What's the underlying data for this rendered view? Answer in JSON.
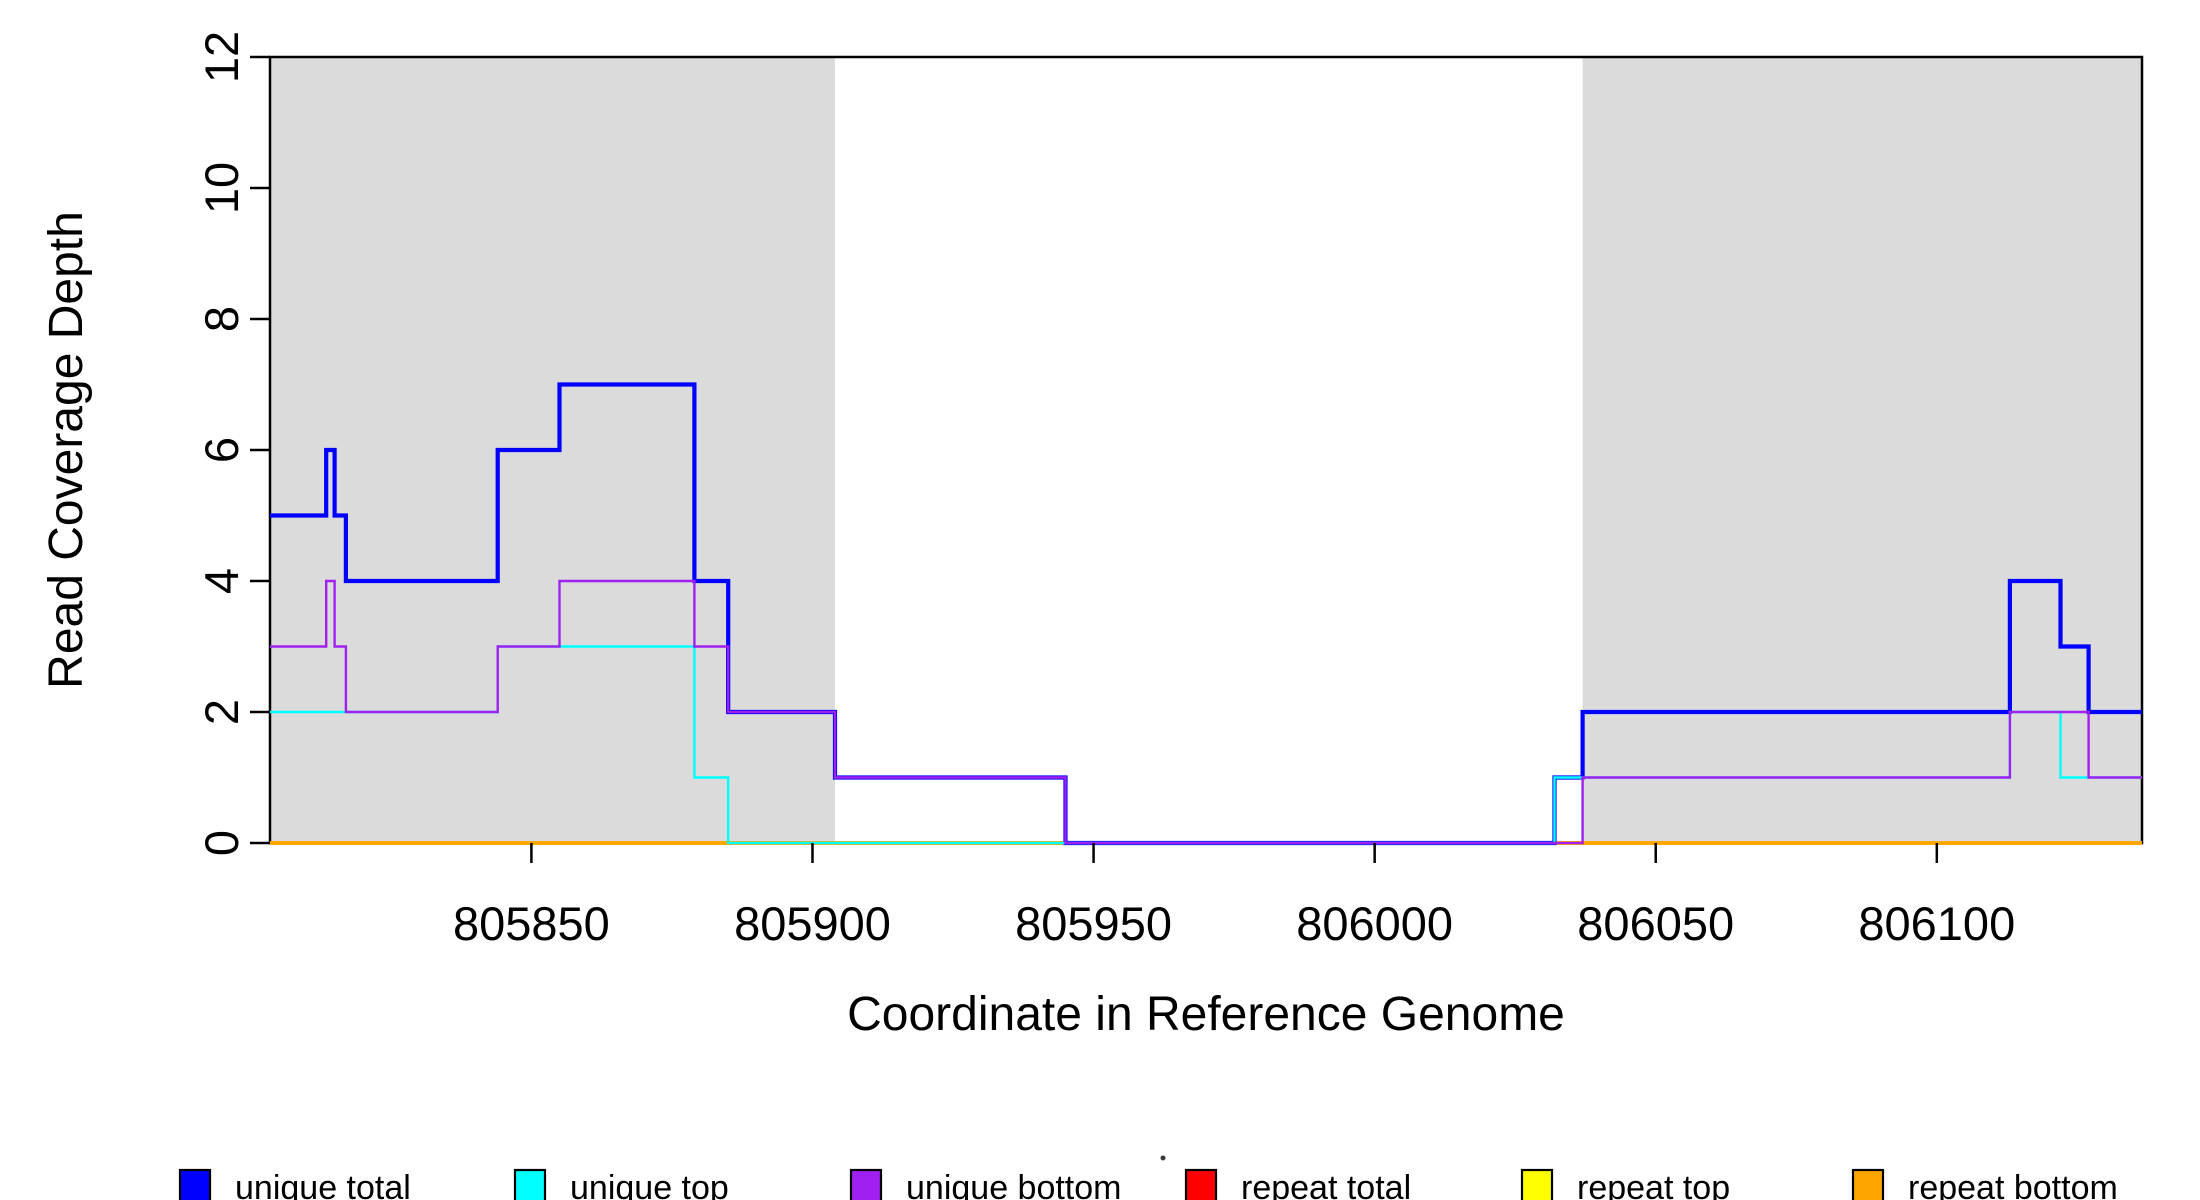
{
  "chart_data": {
    "type": "line",
    "subtype": "step",
    "title": "",
    "xlabel": "Coordinate in Reference Genome",
    "ylabel": "Read Coverage Depth",
    "xlim": [
      805803.5,
      806136.5
    ],
    "ylim": [
      0,
      12
    ],
    "x_end": 806136.5,
    "xticks": [
      805850,
      805900,
      805950,
      806000,
      806050,
      806100
    ],
    "yticks": [
      0,
      2,
      4,
      6,
      8,
      10,
      12
    ],
    "grid": false,
    "legend_position": "bottom",
    "axis_color": "#000000",
    "shaded_regions": [
      {
        "from": 805803.5,
        "to": 805904,
        "color": "#dbdbdb"
      },
      {
        "from": 806037,
        "to": 806136.5,
        "color": "#dbdbdb"
      }
    ],
    "series": [
      {
        "name": "repeat total",
        "color": "#ff0000",
        "width": 3.8,
        "steps": [
          [
            805803.5,
            0
          ]
        ]
      },
      {
        "name": "repeat top",
        "color": "#ffff00",
        "width": 3.8,
        "steps": [
          [
            805803.5,
            0
          ]
        ]
      },
      {
        "name": "repeat bottom",
        "color": "#ffa500",
        "width": 3.8,
        "steps": [
          [
            805803.5,
            0
          ]
        ]
      },
      {
        "name": "unique total",
        "color": "#0000ff",
        "width": 4.2,
        "steps": [
          [
            805803.5,
            5
          ],
          [
            805813.5,
            6
          ],
          [
            805815,
            5
          ],
          [
            805817,
            4
          ],
          [
            805844,
            6
          ],
          [
            805855,
            7
          ],
          [
            805879,
            4
          ],
          [
            805885,
            2
          ],
          [
            805904,
            1
          ],
          [
            805945,
            0
          ],
          [
            806032,
            1
          ],
          [
            806037,
            2
          ],
          [
            806113,
            4
          ],
          [
            806122,
            3
          ],
          [
            806127,
            2
          ]
        ]
      },
      {
        "name": "unique top",
        "color": "#00ffff",
        "width": 2.4,
        "steps": [
          [
            805803.5,
            2
          ],
          [
            805844,
            3
          ],
          [
            805879,
            1
          ],
          [
            805885,
            0
          ],
          [
            806032,
            1
          ],
          [
            806113,
            2
          ],
          [
            806122,
            1
          ]
        ]
      },
      {
        "name": "unique bottom",
        "color": "#a020f0",
        "width": 2.4,
        "steps": [
          [
            805803.5,
            3
          ],
          [
            805813.5,
            4
          ],
          [
            805815,
            3
          ],
          [
            805817,
            2
          ],
          [
            805844,
            3
          ],
          [
            805855,
            4
          ],
          [
            805879,
            3
          ],
          [
            805885,
            2
          ],
          [
            805904,
            1
          ],
          [
            805945,
            0
          ],
          [
            806037,
            1
          ],
          [
            806113,
            2
          ],
          [
            806127,
            1
          ]
        ]
      }
    ],
    "legend": [
      {
        "label": "unique total",
        "color": "#0000ff"
      },
      {
        "label": "unique top",
        "color": "#00ffff"
      },
      {
        "label": "unique bottom",
        "color": "#a020f0"
      },
      {
        "label": "repeat total",
        "color": "#ff0000"
      },
      {
        "label": "repeat top",
        "color": "#ffff00"
      },
      {
        "label": "repeat bottom",
        "color": "#ffa500"
      }
    ]
  }
}
